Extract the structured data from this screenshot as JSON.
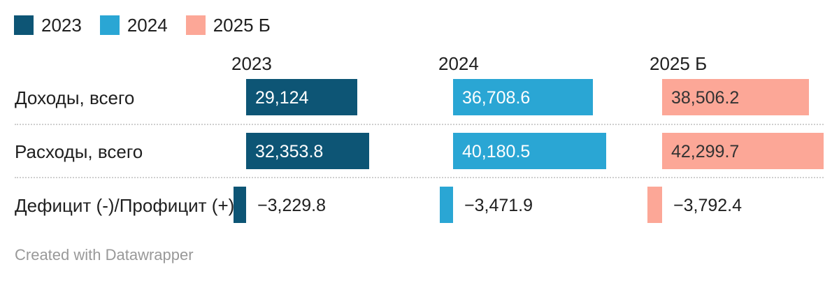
{
  "legend": {
    "position": "top-left",
    "items": [
      {
        "label": "2023",
        "color": "#0d5575"
      },
      {
        "label": "2024",
        "color": "#2aa6d4"
      },
      {
        "label": "2025 Б",
        "color": "#fca797"
      }
    ]
  },
  "chart_data": {
    "type": "bar",
    "orientation": "horizontal",
    "title": "",
    "grid": "off",
    "value_format": "comma-thousands",
    "columns": [
      {
        "label": "2023",
        "color": "#0d5575",
        "value_text_color": "#ffffff"
      },
      {
        "label": "2024",
        "color": "#2aa6d4",
        "value_text_color": "#ffffff"
      },
      {
        "label": "2025 Б",
        "color": "#fca797",
        "value_text_color": "#333333"
      }
    ],
    "categories": [
      "Доходы, всего",
      "Расходы, всего",
      "Дефицит (-)/Профицит (+)"
    ],
    "rows": [
      {
        "label": "Доходы, всего",
        "values": [
          29124,
          36708.6,
          38506.2
        ],
        "labels": [
          "29,124",
          "36,708.6",
          "38,506.2"
        ]
      },
      {
        "label": "Расходы, всего",
        "values": [
          32353.8,
          40180.5,
          42299.7
        ],
        "labels": [
          "32,353.8",
          "40,180.5",
          "42,299.7"
        ]
      },
      {
        "label": "Дефицит (-)/Профицит (+)",
        "values": [
          -3229.8,
          -3471.9,
          -3792.4
        ],
        "labels": [
          "−3,229.8",
          "−3,471.9",
          "−3,792.4"
        ]
      }
    ],
    "series": [
      {
        "name": "2023",
        "values": [
          29124,
          32353.8,
          -3229.8
        ]
      },
      {
        "name": "2024",
        "values": [
          36708.6,
          40180.5,
          -3471.9
        ]
      },
      {
        "name": "2025 Б",
        "values": [
          38506.2,
          42299.7,
          -3792.4
        ]
      }
    ],
    "negative_value_text_color": "#1f1f1f"
  },
  "footer": {
    "text": "Created with Datawrapper"
  }
}
